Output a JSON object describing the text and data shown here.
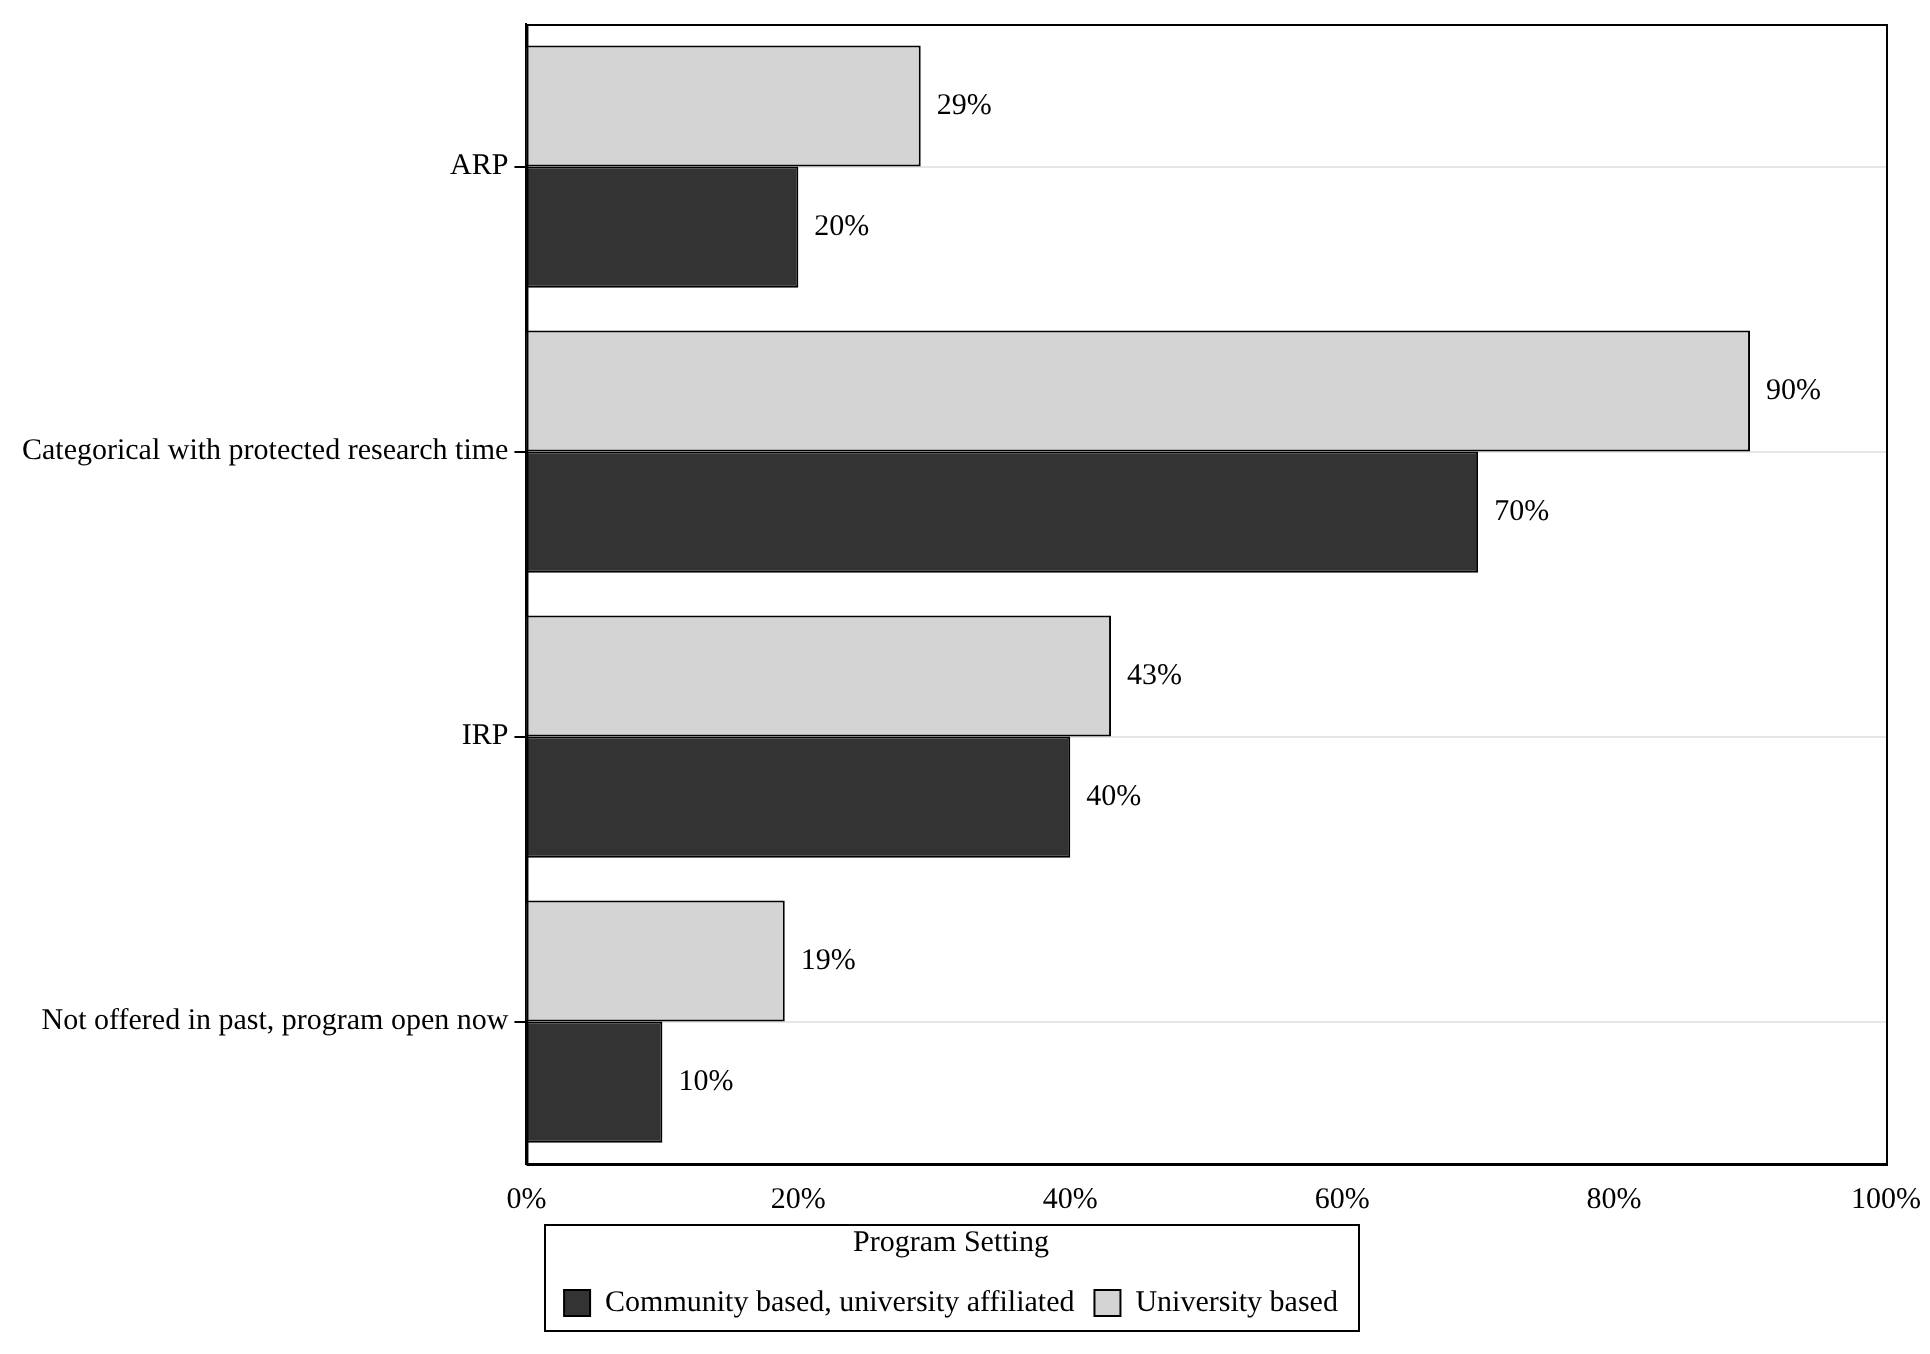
{
  "chart_data": {
    "type": "bar",
    "orientation": "horizontal",
    "categories": [
      "ARP",
      "Categorical with protected research time",
      "IRP",
      "Not offered in past, program open now"
    ],
    "series": [
      {
        "name": "University based",
        "color": "#d4d4d4",
        "values": [
          29,
          90,
          43,
          19
        ],
        "value_labels": [
          "29%",
          "90%",
          "43%",
          "19%"
        ]
      },
      {
        "name": "Community based, university affiliated",
        "color": "#333333",
        "values": [
          20,
          70,
          40,
          10
        ],
        "value_labels": [
          "20%",
          "70%",
          "40%",
          "10%"
        ]
      }
    ],
    "xlim": [
      0,
      100
    ],
    "xticks": [
      {
        "value": 0,
        "label": "0%"
      },
      {
        "value": 20,
        "label": "20%"
      },
      {
        "value": 40,
        "label": "40%"
      },
      {
        "value": 60,
        "label": "60%"
      },
      {
        "value": 80,
        "label": "80%"
      },
      {
        "value": 100,
        "label": "100%"
      }
    ],
    "grid": "y",
    "legend": "bottom",
    "legend_title": "Program Setting"
  }
}
